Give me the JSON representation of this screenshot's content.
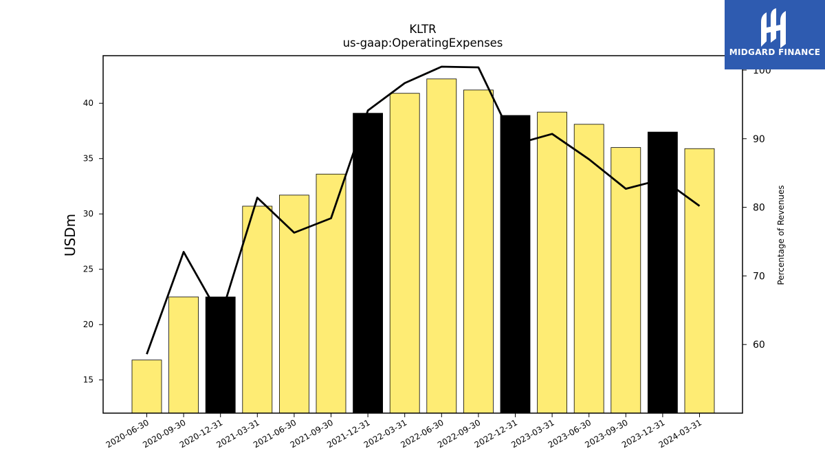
{
  "chart_data": {
    "type": "bar",
    "title": "KLTR",
    "subtitle": "us-gaap:OperatingExpenses",
    "ylabel": "USDm",
    "y2label": "Percentage of Revenues",
    "categories": [
      "2020-06-30",
      "2020-09-30",
      "2020-12-31",
      "2021-03-31",
      "2021-06-30",
      "2021-09-30",
      "2021-12-31",
      "2022-03-31",
      "2022-06-30",
      "2022-09-30",
      "2022-12-31",
      "2023-03-31",
      "2023-06-30",
      "2023-09-30",
      "2023-12-31",
      "2024-03-31"
    ],
    "series": [
      {
        "type": "bar",
        "axis": "left",
        "values": [
          16.8,
          22.5,
          22.5,
          30.7,
          31.7,
          33.6,
          39.1,
          40.9,
          42.2,
          41.2,
          38.9,
          39.2,
          38.1,
          36.0,
          37.4,
          35.9
        ],
        "colors": [
          "#feec74",
          "#feec74",
          "#000000",
          "#feec74",
          "#feec74",
          "#feec74",
          "#000000",
          "#feec74",
          "#feec74",
          "#feec74",
          "#000000",
          "#feec74",
          "#feec74",
          "#feec74",
          "#000000",
          "#feec74"
        ]
      },
      {
        "type": "line",
        "axis": "right",
        "values": [
          58.6,
          73.5,
          64.0,
          81.4,
          76.3,
          78.4,
          94.1,
          98.1,
          100.5,
          100.4,
          89.2,
          90.7,
          87.0,
          82.7,
          84.1,
          80.2
        ],
        "color": "#000000"
      }
    ],
    "yticks": [
      15,
      20,
      25,
      30,
      35,
      40
    ],
    "ylim": [
      12.0,
      44.3
    ],
    "y2ticks": [
      60,
      70,
      80,
      90,
      100
    ],
    "y2lim": [
      50.0,
      102.1
    ],
    "grid": false,
    "legend": "none"
  },
  "logo": {
    "text": "MIDGARD FINANCE",
    "background": "#2e5bb0"
  }
}
